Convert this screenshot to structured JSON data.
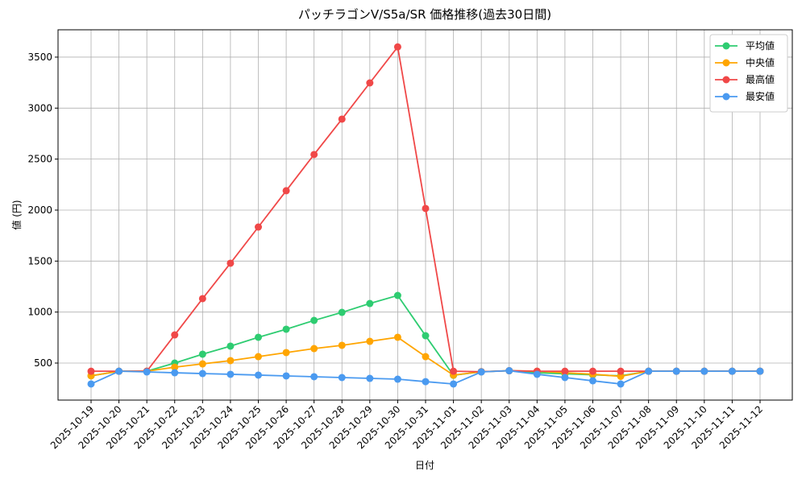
{
  "chart_data": {
    "type": "line",
    "title": "パッチラゴンV/S5a/SR 価格推移(過去30日間)",
    "x_label": "日付",
    "y_label": "値 (円)",
    "categories": [
      "2025-10-19",
      "2025-10-20",
      "2025-10-21",
      "2025-10-22",
      "2025-10-23",
      "2025-10-24",
      "2025-10-25",
      "2025-10-26",
      "2025-10-27",
      "2025-10-28",
      "2025-10-29",
      "2025-10-30",
      "2025-10-31",
      "2025-11-01",
      "2025-11-02",
      "2025-11-03",
      "2025-11-04",
      "2025-11-05",
      "2025-11-06",
      "2025-11-07",
      "2025-11-08",
      "2025-11-09",
      "2025-11-10",
      "2025-11-11",
      "2025-11-12"
    ],
    "series": [
      {
        "name": "平均値",
        "color": "#2ecc71",
        "values": [
          375,
          420,
          420,
          500,
          587,
          666,
          753,
          832,
          918,
          997,
          1084,
          1163,
          768,
          380,
          415,
          425,
          405,
          395,
          385,
          375,
          420,
          420,
          420,
          420,
          420
        ]
      },
      {
        "name": "中央値",
        "color": "#ffa500",
        "values": [
          375,
          420,
          420,
          460,
          492,
          524,
          563,
          603,
          642,
          674,
          713,
          753,
          563,
          382,
          415,
          425,
          420,
          405,
          390,
          370,
          420,
          420,
          420,
          420,
          420
        ]
      },
      {
        "name": "最高値",
        "color": "#f04848",
        "values": [
          420,
          420,
          420,
          776,
          1132,
          1479,
          1834,
          2190,
          2545,
          2892,
          3247,
          3600,
          2016,
          420,
          415,
          425,
          420,
          420,
          420,
          420,
          420,
          420,
          420,
          420,
          420
        ]
      },
      {
        "name": "最安値",
        "color": "#4a9af0",
        "values": [
          295,
          420,
          413,
          405,
          397,
          390,
          382,
          374,
          366,
          358,
          350,
          342,
          318,
          295,
          413,
          425,
          390,
          358,
          326,
          295,
          420,
          420,
          420,
          420,
          420
        ]
      }
    ],
    "ylim": [
      137,
      3768
    ],
    "yticks": [
      500,
      1000,
      1500,
      2000,
      2500,
      3000,
      3500
    ],
    "grid": true,
    "legend": "upper right"
  }
}
